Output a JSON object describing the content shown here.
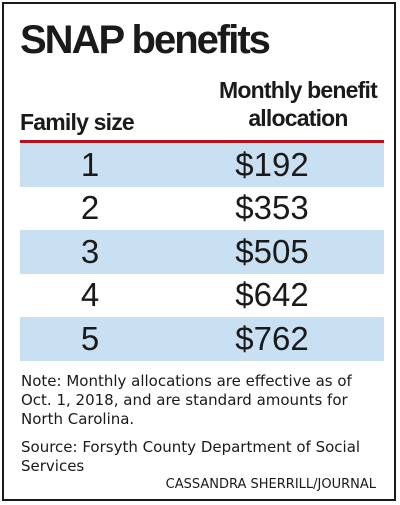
{
  "chart_data": {
    "type": "table",
    "title": "SNAP benefits",
    "columns": [
      "Family size",
      "Monthly benefit allocation"
    ],
    "rows": [
      {
        "family_size": "1",
        "amount": "$192"
      },
      {
        "family_size": "2",
        "amount": "$353"
      },
      {
        "family_size": "3",
        "amount": "$505"
      },
      {
        "family_size": "4",
        "amount": "$642"
      },
      {
        "family_size": "5",
        "amount": "$762"
      }
    ],
    "family_sizes": [
      1,
      2,
      3,
      4,
      5
    ],
    "values": [
      192,
      353,
      505,
      642,
      762
    ]
  },
  "header": {
    "col_family": "Family size",
    "col_benefit_line1": "Monthly benefit",
    "col_benefit_line2": "allocation"
  },
  "footer": {
    "note": "Note: Monthly allocations are effective as of Oct. 1, 2018, and are standard amounts for North Carolina.",
    "source": "Source: Forsyth County Department of Social Services",
    "credit": "CASSANDRA SHERRILL/JOURNAL"
  },
  "colors": {
    "row_shade": "#c9dff2",
    "header_rule": "#b5121b",
    "text": "#1a1a1a",
    "border": "#1a1a1a"
  }
}
